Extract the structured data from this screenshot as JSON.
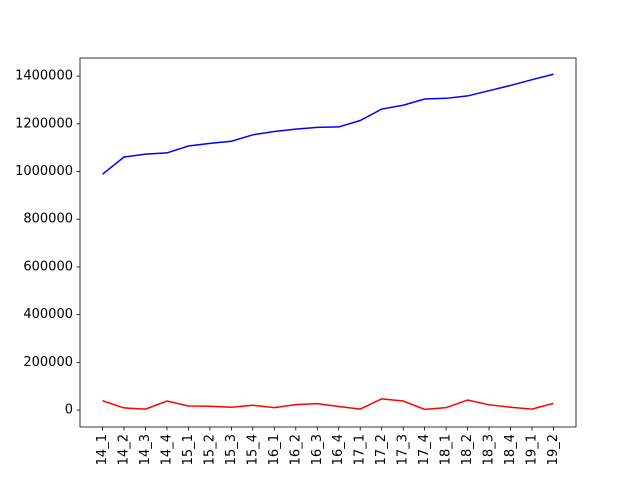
{
  "chart_data": {
    "type": "line",
    "categories": [
      "14_1",
      "14_2",
      "14_3",
      "14_4",
      "15_1",
      "15_2",
      "15_3",
      "15_4",
      "16_1",
      "16_2",
      "16_3",
      "16_4",
      "17_1",
      "17_2",
      "17_3",
      "17_4",
      "18_1",
      "18_2",
      "18_3",
      "18_4",
      "19_1",
      "19_2"
    ],
    "series": [
      {
        "color": "#0000ff",
        "values": [
          989000,
          1061000,
          1073000,
          1078000,
          1107000,
          1118000,
          1127000,
          1154000,
          1168000,
          1178000,
          1185000,
          1187000,
          1214000,
          1262000,
          1278000,
          1304000,
          1307000,
          1317000,
          1339000,
          1361000,
          1385000,
          1408000
        ]
      },
      {
        "color": "#ff0000",
        "values": [
          39000,
          9000,
          4000,
          38000,
          17000,
          16000,
          12000,
          20000,
          10000,
          23000,
          27000,
          15000,
          4000,
          47000,
          38000,
          3000,
          10000,
          42000,
          22000,
          12000,
          4000,
          28000
        ]
      }
    ],
    "ylim": [
      -71000,
      1476000
    ],
    "yticks": [
      0,
      200000,
      400000,
      600000,
      800000,
      1000000,
      1200000,
      1400000
    ],
    "grid": false
  }
}
